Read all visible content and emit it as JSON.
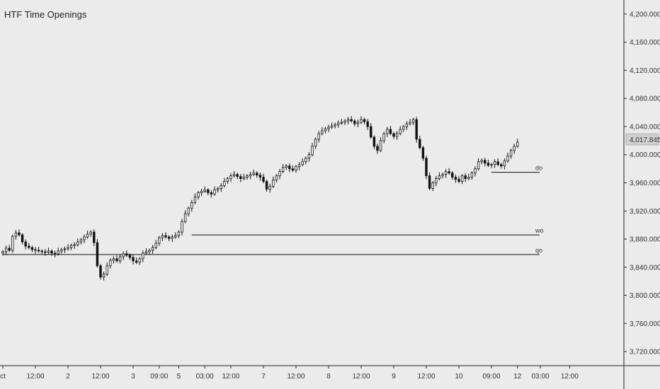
{
  "indicator": {
    "title": "HTF Time Openings"
  },
  "chart_data": {
    "type": "candlestick",
    "title": "HTF Time Openings",
    "ylim": [
      3700,
      4220
    ],
    "y_ticks": [
      "4,200.000",
      "4,160.000",
      "4,120.000",
      "4,080.000",
      "4,040.000",
      "4,000.000",
      "3,960.000",
      "3,920.000",
      "3,880.000",
      "3,840.000",
      "3,800.000",
      "3,760.000",
      "3,720.000"
    ],
    "y_tick_values": [
      4200,
      4160,
      4120,
      4080,
      4040,
      4000,
      3960,
      3920,
      3880,
      3840,
      3800,
      3760,
      3720
    ],
    "x_ticks": [
      "ct",
      "12:00",
      "2",
      "12:00",
      "3",
      "09:00",
      "5",
      "03:00",
      "12:00",
      "7",
      "12:00",
      "8",
      "12:00",
      "9",
      "12:00",
      "10",
      "09:00",
      "12",
      "03:00",
      "12:00"
    ],
    "x_tick_bars": [
      0,
      10,
      20,
      30,
      40,
      48,
      54,
      62,
      70,
      80,
      90,
      100,
      110,
      120,
      130,
      140,
      150,
      158,
      165,
      174
    ],
    "current_price": {
      "label": "4,017.845",
      "value": 4017.845
    },
    "levels": [
      {
        "label": "do",
        "value": 3975
      },
      {
        "label": "wo",
        "value": 3886
      },
      {
        "label": "qo",
        "value": 3858
      }
    ],
    "close": [
      3862,
      3867,
      3864,
      3884,
      3889,
      3886,
      3876,
      3870,
      3868,
      3865,
      3864,
      3863,
      3862,
      3861,
      3863,
      3860,
      3859,
      3863,
      3865,
      3866,
      3868,
      3871,
      3872,
      3876,
      3879,
      3883,
      3887,
      3890,
      3875,
      3842,
      3826,
      3830,
      3842,
      3850,
      3852,
      3849,
      3855,
      3859,
      3857,
      3854,
      3849,
      3847,
      3852,
      3860,
      3862,
      3864,
      3868,
      3874,
      3882,
      3885,
      3883,
      3881,
      3883,
      3885,
      3890,
      3905,
      3916,
      3924,
      3932,
      3940,
      3946,
      3948,
      3950,
      3946,
      3944,
      3950,
      3952,
      3956,
      3962,
      3966,
      3970,
      3972,
      3969,
      3966,
      3968,
      3970,
      3972,
      3974,
      3971,
      3968,
      3962,
      3951,
      3955,
      3964,
      3970,
      3976,
      3982,
      3984,
      3980,
      3978,
      3983,
      3986,
      3990,
      3995,
      4000,
      4012,
      4022,
      4030,
      4034,
      4037,
      4039,
      4041,
      4043,
      4045,
      4046,
      4048,
      4050,
      4048,
      4044,
      4046,
      4050,
      4047,
      4040,
      4025,
      4012,
      4006,
      4020,
      4030,
      4036,
      4030,
      4026,
      4030,
      4036,
      4040,
      4044,
      4046,
      4050,
      4022,
      4010,
      3995,
      3970,
      3952,
      3960,
      3966,
      3970,
      3972,
      3976,
      3974,
      3968,
      3965,
      3962,
      3970,
      3966,
      3968,
      3974,
      3980,
      3990,
      3992,
      3988,
      3985,
      3986,
      3990,
      3986,
      3984,
      3991,
      3998,
      4006,
      4012,
      4017.845
    ],
    "open_levels_note": ""
  }
}
